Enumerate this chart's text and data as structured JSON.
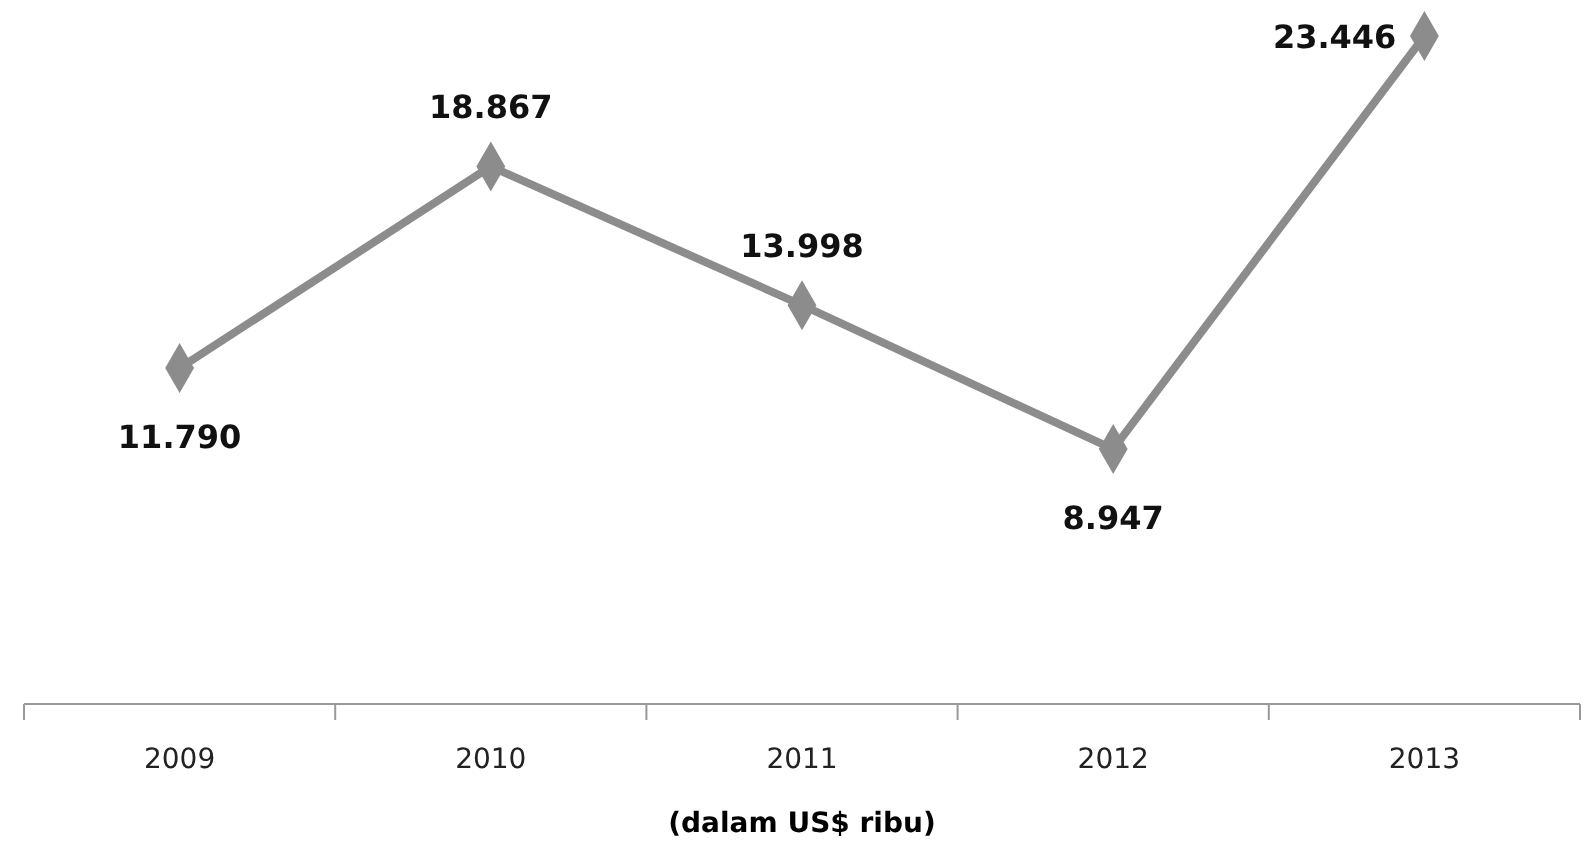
{
  "chart_data": {
    "type": "line",
    "xlabel": "(dalam US$ ribu)",
    "categories": [
      "2009",
      "2010",
      "2011",
      "2012",
      "2013"
    ],
    "series": [
      {
        "color": "#8c8c8c",
        "values": [
          11790,
          18867,
          13998,
          8947,
          23446
        ],
        "value_labels": [
          "11.790",
          "18.867",
          "13.998",
          "8.947",
          "23.446"
        ]
      }
    ],
    "marker": "diamond",
    "line_style": "solid",
    "grid": false
  }
}
